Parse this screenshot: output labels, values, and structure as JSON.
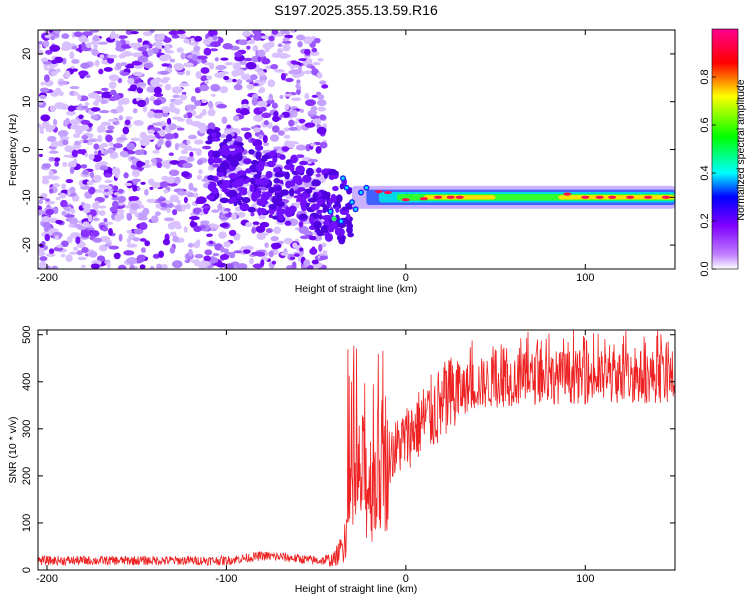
{
  "chart_data": [
    {
      "type": "heatmap",
      "title": "S197.2025.355.13.59.R16",
      "xlabel": "Height of straight line (km)",
      "ylabel": "Frequency (Hz)",
      "xlim": [
        -205,
        150
      ],
      "ylim": [
        -25,
        25
      ],
      "x_ticks": [
        -200,
        -100,
        0,
        100
      ],
      "y_ticks": [
        -20,
        -10,
        0,
        10,
        20
      ],
      "colorbar": {
        "label": "Normalized spectral amplitude",
        "range": [
          0,
          1
        ],
        "ticks": [
          0.0,
          0.2,
          0.4,
          0.6,
          0.8
        ],
        "colors": [
          "#ffffff",
          "#a000ff",
          "#0000ff",
          "#00ffff",
          "#00ff00",
          "#ffff00",
          "#ff0000",
          "#ff00a0"
        ]
      },
      "features": {
        "noise_region_x": [
          -205,
          -45
        ],
        "transition_x": [
          -45,
          -10
        ],
        "carrier_line_x": [
          -10,
          150
        ],
        "carrier_frequency_hz": -10
      }
    },
    {
      "type": "line",
      "xlabel": "Height of straight line (km)",
      "ylabel": "SNR (10 * v/v)",
      "xlim": [
        -205,
        150
      ],
      "ylim": [
        0,
        510
      ],
      "x_ticks": [
        -200,
        -100,
        0,
        100
      ],
      "y_ticks": [
        0,
        100,
        200,
        300,
        400,
        500
      ],
      "color": "#ee2222",
      "series": [
        {
          "x": [
            -205,
            -180,
            -160,
            -140,
            -120,
            -100,
            -90,
            -80,
            -70,
            -60,
            -50,
            -45,
            -40,
            -35,
            -30,
            -25,
            -20,
            -15,
            -10,
            -5,
            0,
            10,
            20,
            30,
            40,
            50,
            60,
            80,
            100,
            120,
            140,
            150
          ],
          "y": [
            20,
            20,
            20,
            20,
            20,
            20,
            25,
            30,
            28,
            24,
            20,
            20,
            22,
            50,
            150,
            200,
            180,
            210,
            240,
            260,
            280,
            320,
            350,
            380,
            395,
            400,
            405,
            410,
            410,
            410,
            412,
            410
          ]
        }
      ]
    }
  ]
}
